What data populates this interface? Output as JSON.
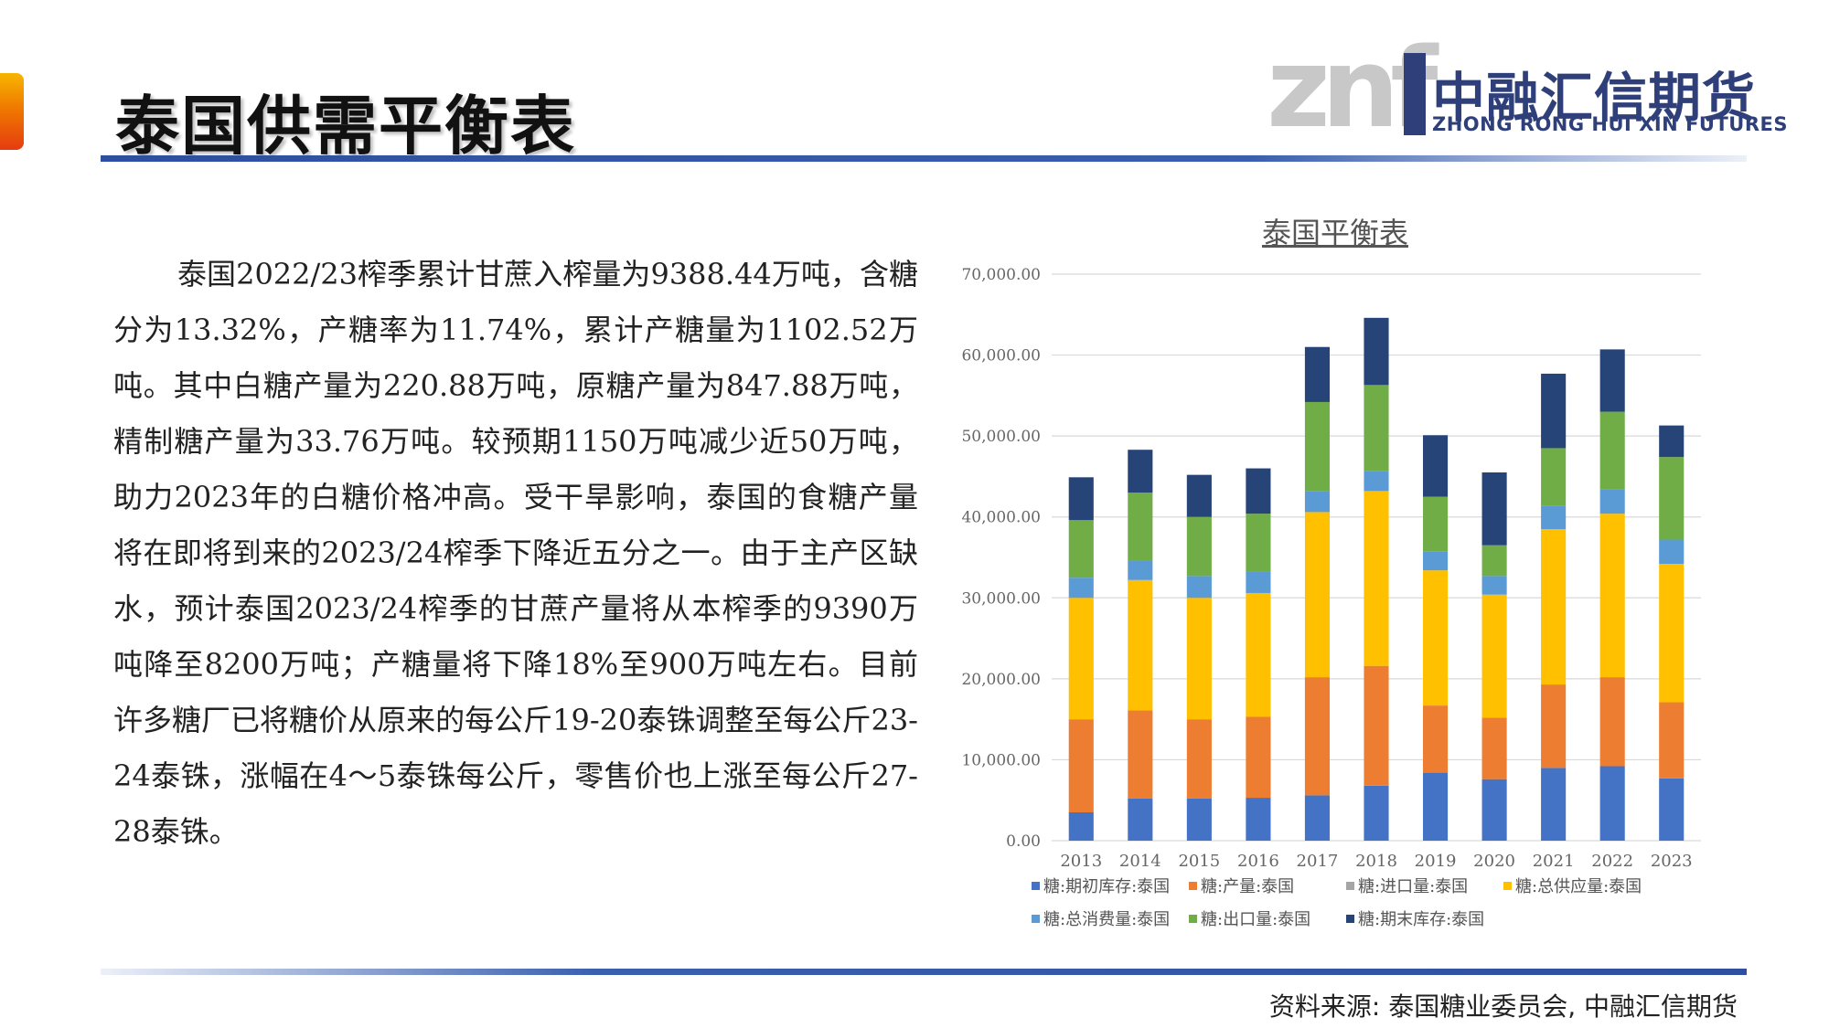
{
  "header": {
    "title": "泰国供需平衡表",
    "logo_cn": "中融汇信期货",
    "logo_en": "ZHONG RONG HUI XIN FUTURES",
    "logo_mark": "znf"
  },
  "body": {
    "paragraph": "泰国2022/23榨季累计甘蔗入榨量为9388.44万吨，含糖分为13.32%，产糖率为11.74%，累计产糖量为1102.52万吨。其中白糖产量为220.88万吨，原糖产量为847.88万吨，精制糖产量为33.76万吨。较预期1150万吨减少近50万吨，助力2023年的白糖价格冲高。受干旱影响，泰国的食糖产量将在即将到来的2023/24榨季下降近五分之一。由于主产区缺水，预计泰国2023/24榨季的甘蔗产量将从本榨季的9390万吨降至8200万吨；产糖量将下降18%至900万吨左右。目前许多糖厂已将糖价从原来的每公斤19-20泰铢调整至每公斤23-24泰铢，涨幅在4～5泰铢每公斤，零售价也上涨至每公斤27-28泰铢。"
  },
  "footer": {
    "source": "资料来源: 泰国糖业委员会, 中融汇信期货"
  },
  "chart_data": {
    "type": "bar",
    "stacked": true,
    "title": "泰国平衡表",
    "categories": [
      "2013",
      "2014",
      "2015",
      "2016",
      "2017",
      "2018",
      "2019",
      "2020",
      "2021",
      "2022",
      "2023"
    ],
    "ylim": [
      0,
      70000
    ],
    "yticks": [
      "0.00",
      "10,000.00",
      "20,000.00",
      "30,000.00",
      "40,000.00",
      "50,000.00",
      "60,000.00",
      "70,000.00"
    ],
    "grid": true,
    "legend_position": "bottom",
    "series": [
      {
        "name": "糖:期初库存:泰国",
        "color": "#4472c4",
        "values": [
          3500,
          5200,
          5200,
          5300,
          5600,
          6800,
          8400,
          7600,
          9000,
          9200,
          7700
        ]
      },
      {
        "name": "糖:产量:泰国",
        "color": "#ed7d31",
        "values": [
          11500,
          10900,
          9800,
          10000,
          14600,
          14800,
          8300,
          7600,
          10300,
          11000,
          9400
        ]
      },
      {
        "name": "糖:进口量:泰国",
        "color": "#a5a5a5",
        "values": [
          0,
          0,
          0,
          0,
          0,
          0,
          0,
          0,
          0,
          0,
          0
        ]
      },
      {
        "name": "糖:总供应量:泰国",
        "color": "#ffc000",
        "values": [
          15000,
          16100,
          15000,
          15300,
          20400,
          21600,
          16700,
          15200,
          19200,
          20200,
          17100
        ]
      },
      {
        "name": "糖:总消费量:泰国",
        "color": "#5b9bd5",
        "values": [
          2500,
          2400,
          2700,
          2700,
          2600,
          2500,
          2300,
          2300,
          2900,
          3000,
          3000
        ]
      },
      {
        "name": "糖:出口量:泰国",
        "color": "#70ad47",
        "values": [
          7100,
          8400,
          7300,
          7100,
          11000,
          10600,
          6800,
          3800,
          7100,
          9600,
          10200
        ]
      },
      {
        "name": "糖:期末库存:泰国",
        "color": "#264478",
        "values": [
          5300,
          5300,
          5200,
          5600,
          6800,
          8300,
          7600,
          9000,
          9200,
          7700,
          3900
        ]
      }
    ]
  }
}
